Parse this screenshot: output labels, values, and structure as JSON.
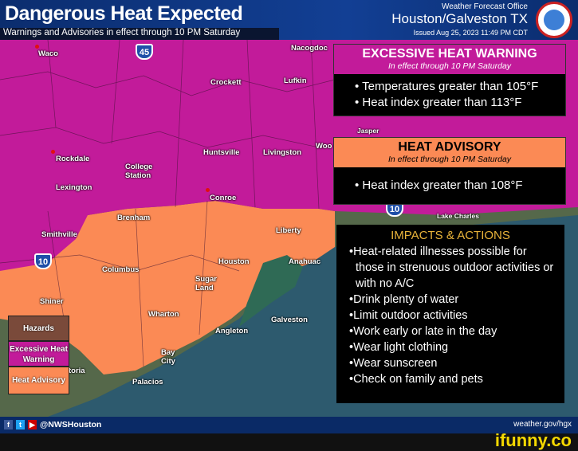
{
  "header": {
    "title": "Dangerous Heat Expected",
    "subtitle": "Warnings and Advisories in effect through 10 PM Saturday",
    "office_label": "Weather Forecast Office",
    "office": "Houston/Galveston TX",
    "issued": "Issued Aug 25, 2023 11:49 PM CDT",
    "logo_text": "NATIONAL WEATHER SERVICE"
  },
  "colors": {
    "warning": "#c21b9a",
    "advisory": "#fb8a55",
    "header": "#0b2d6e",
    "impacts_title": "#e8b33a"
  },
  "map": {
    "cities": [
      "Waco",
      "Nacogdoc",
      "Crockett",
      "Lufkin",
      "Huntsville",
      "Livingston",
      "Woo",
      "Rockdale",
      "College Station",
      "Lexington",
      "Conroe",
      "Brenham",
      "Smithville",
      "Liberty",
      "Columbus",
      "Houston",
      "Anahuac",
      "Sugar Land",
      "Shiner",
      "Wharton",
      "Angleton",
      "Galveston",
      "Bay City",
      "Palacios",
      "toria",
      "Jasper",
      "Lake Charles"
    ],
    "highways": [
      "45",
      "10",
      "10"
    ]
  },
  "warning": {
    "title": "EXCESSIVE HEAT WARNING",
    "period": "In effect through 10 PM Saturday",
    "bullets": [
      "Temperatures greater than 105°F",
      "Heat index greater than 113°F"
    ]
  },
  "advisory": {
    "title": "HEAT ADVISORY",
    "period": "In effect through 10 PM Saturday",
    "bullets": [
      "Heat index greater than 108°F"
    ]
  },
  "impacts": {
    "title": "IMPACTS & ACTIONS",
    "bullets": [
      "Heat-related illnesses possible for those in strenuous outdoor activities or with no A/C",
      "Drink plenty of water",
      "Limit outdoor activities",
      "Work early or late in the day",
      "Wear light clothing",
      "Wear sunscreen",
      "Check on family and pets"
    ]
  },
  "legend": {
    "title": "Hazards",
    "items": [
      "Excessive Heat Warning",
      "Heat Advisory"
    ]
  },
  "footer": {
    "social": [
      "f",
      "t",
      "▶"
    ],
    "handle": "@NWSHouston",
    "website": "weather.gov/hgx"
  },
  "watermark": "ifunny.co"
}
